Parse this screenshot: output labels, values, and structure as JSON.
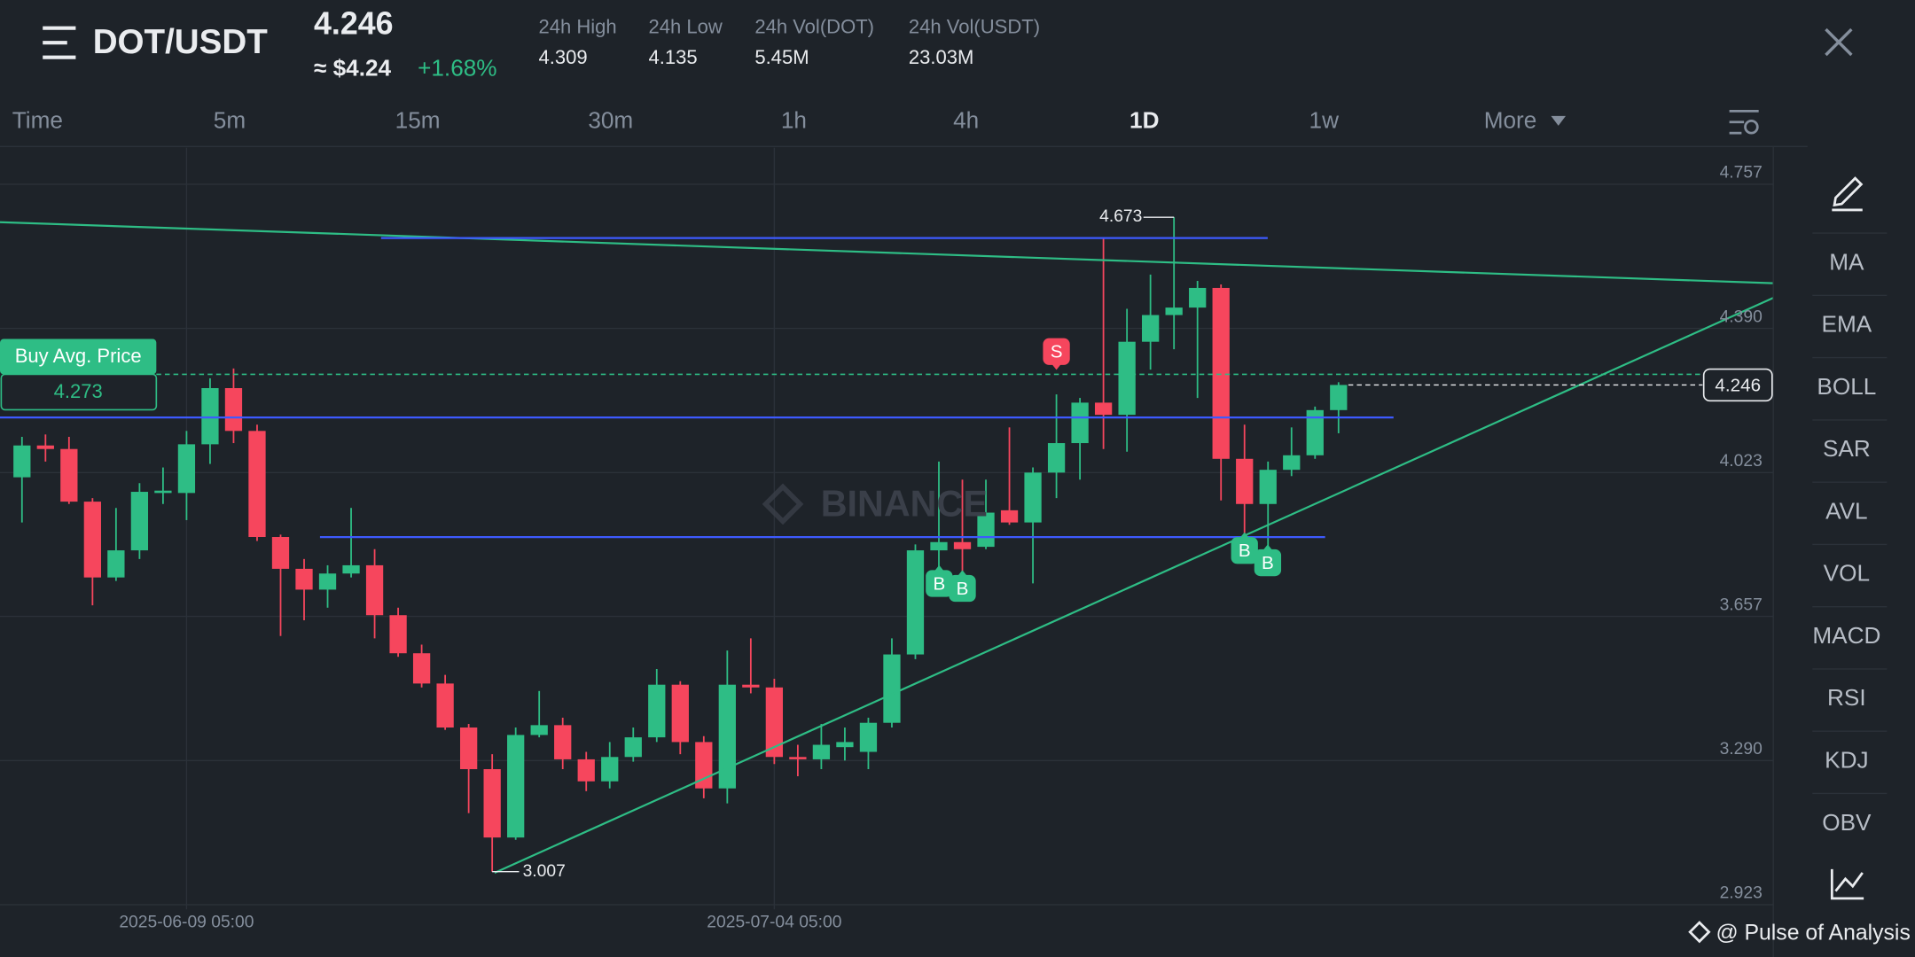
{
  "header": {
    "pair": "DOT/USDT",
    "price": "4.246",
    "price_usd": "≈ $4.24",
    "change": "+1.68%",
    "stats": [
      {
        "label": "24h High",
        "value": "4.309"
      },
      {
        "label": "24h Low",
        "value": "4.135"
      },
      {
        "label": "24h Vol(DOT)",
        "value": "5.45M"
      },
      {
        "label": "24h Vol(USDT)",
        "value": "23.03M"
      }
    ]
  },
  "tabs": [
    "Time",
    "5m",
    "15m",
    "30m",
    "1h",
    "4h",
    "1D",
    "1w",
    "More"
  ],
  "indicators": [
    "MA",
    "EMA",
    "BOLL",
    "SAR",
    "AVL",
    "VOL",
    "MACD",
    "RSI",
    "KDJ",
    "OBV"
  ],
  "watermark": "BINANCE",
  "credit": "@ Pulse of Analysis",
  "chart_data": {
    "type": "candlestick",
    "categories": [
      null,
      null,
      null,
      null,
      null,
      null,
      null,
      "2025-06-09 05:00",
      null,
      null,
      null,
      null,
      null,
      null,
      null,
      null,
      null,
      null,
      null,
      null,
      null,
      null,
      null,
      null,
      null,
      null,
      null,
      null,
      null,
      null,
      null,
      null,
      "2025-07-04 05:00",
      null,
      null,
      null,
      null,
      null,
      null,
      null,
      null,
      null,
      null,
      null,
      null,
      null,
      null,
      null,
      null,
      null,
      null,
      null,
      null,
      null,
      null,
      null,
      null
    ],
    "open": [
      4.011,
      4.092,
      4.083,
      3.949,
      3.756,
      3.825,
      3.971,
      3.971,
      4.095,
      4.238,
      4.129,
      3.859,
      3.778,
      3.725,
      3.766,
      3.787,
      3.66,
      3.563,
      3.486,
      3.374,
      3.268,
      3.094,
      3.355,
      3.38,
      3.293,
      3.237,
      3.299,
      3.349,
      3.483,
      3.337,
      3.219,
      3.483,
      3.476,
      3.299,
      3.293,
      3.324,
      3.312,
      3.386,
      3.56,
      3.825,
      3.846,
      3.834,
      3.927,
      3.896,
      4.023,
      4.098,
      4.201,
      4.17,
      4.356,
      4.424,
      4.443,
      4.493,
      4.058,
      3.943,
      4.03,
      4.067,
      4.182
    ],
    "high": [
      4.114,
      4.12,
      4.114,
      3.958,
      3.933,
      3.996,
      4.036,
      4.129,
      4.263,
      4.288,
      4.145,
      3.865,
      3.803,
      3.787,
      3.933,
      3.828,
      3.679,
      3.585,
      3.508,
      3.383,
      3.306,
      3.374,
      3.467,
      3.399,
      3.312,
      3.337,
      3.374,
      3.523,
      3.492,
      3.352,
      3.57,
      3.601,
      3.498,
      3.33,
      3.383,
      3.374,
      3.399,
      3.601,
      3.84,
      4.051,
      4.005,
      4.005,
      4.138,
      4.036,
      4.222,
      4.213,
      4.62,
      4.44,
      4.527,
      4.673,
      4.511,
      4.502,
      4.145,
      4.051,
      4.138,
      4.191,
      4.253
    ],
    "low": [
      3.896,
      4.051,
      3.943,
      3.685,
      3.747,
      3.803,
      3.943,
      3.902,
      4.045,
      4.098,
      3.849,
      3.607,
      3.647,
      3.679,
      3.756,
      3.601,
      3.554,
      3.476,
      3.368,
      3.156,
      3.007,
      3.088,
      3.349,
      3.268,
      3.212,
      3.219,
      3.287,
      3.337,
      3.306,
      3.194,
      3.181,
      3.461,
      3.281,
      3.25,
      3.268,
      3.29,
      3.268,
      3.374,
      3.548,
      3.71,
      3.747,
      3.828,
      3.89,
      3.741,
      3.958,
      4.005,
      4.083,
      4.076,
      4.285,
      4.337,
      4.213,
      3.952,
      3.84,
      3.803,
      4.014,
      4.058,
      4.123
    ],
    "close": [
      4.092,
      4.083,
      3.949,
      3.756,
      3.825,
      3.974,
      3.977,
      4.095,
      4.238,
      4.129,
      3.859,
      3.778,
      3.725,
      3.766,
      3.787,
      3.66,
      3.563,
      3.486,
      3.374,
      3.268,
      3.094,
      3.355,
      3.38,
      3.293,
      3.237,
      3.299,
      3.349,
      3.483,
      3.337,
      3.219,
      3.483,
      3.476,
      3.299,
      3.293,
      3.33,
      3.337,
      3.386,
      3.56,
      3.825,
      3.846,
      3.828,
      3.921,
      3.896,
      4.023,
      4.098,
      4.201,
      4.17,
      4.356,
      4.424,
      4.443,
      4.493,
      4.058,
      3.943,
      4.03,
      4.067,
      4.182,
      4.246
    ],
    "up_color": "#2ebd85",
    "down_color": "#f6465d",
    "ylim": [
      2.911,
      4.85
    ],
    "yticks": [
      4.757,
      {
        "value": 4.39,
        "label": "4.390"
      },
      4.023,
      3.657,
      {
        "value": 3.29,
        "label": "3.290"
      },
      2.923
    ],
    "grid": true,
    "buy_avg": {
      "label": "Buy Avg. Price",
      "value": 4.273
    },
    "signals": [
      "S",
      "B",
      "B",
      "B",
      "B"
    ]
  }
}
